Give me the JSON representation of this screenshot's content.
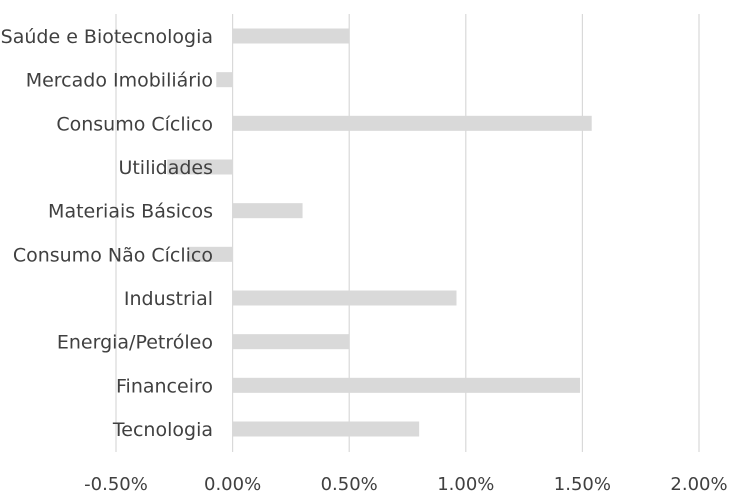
{
  "chart_data": {
    "type": "bar",
    "orientation": "horizontal",
    "categories": [
      "Saúde e Biotecnologia",
      "Mercado Imobiliário",
      "Consumo Cíclico",
      "Utilidades",
      "Materiais Básicos",
      "Consumo Não Cíclico",
      "Industrial",
      "Energia/Petróleo",
      "Financeiro",
      "Tecnologia"
    ],
    "values": [
      0.5,
      -0.07,
      1.54,
      -0.28,
      0.3,
      -0.19,
      0.96,
      0.5,
      1.49,
      0.8
    ],
    "value_unit": "%",
    "xlim": [
      -0.5,
      2.0
    ],
    "x_ticks": [
      -0.5,
      0.0,
      0.5,
      1.0,
      1.5,
      2.0
    ],
    "x_tick_labels": [
      "-0.50%",
      "0.00%",
      "0.50%",
      "1.00%",
      "1.50%",
      "2.00%"
    ],
    "bar_color": "#d9d9d9",
    "grid": "vertical",
    "title": "",
    "xlabel": "",
    "ylabel": ""
  }
}
